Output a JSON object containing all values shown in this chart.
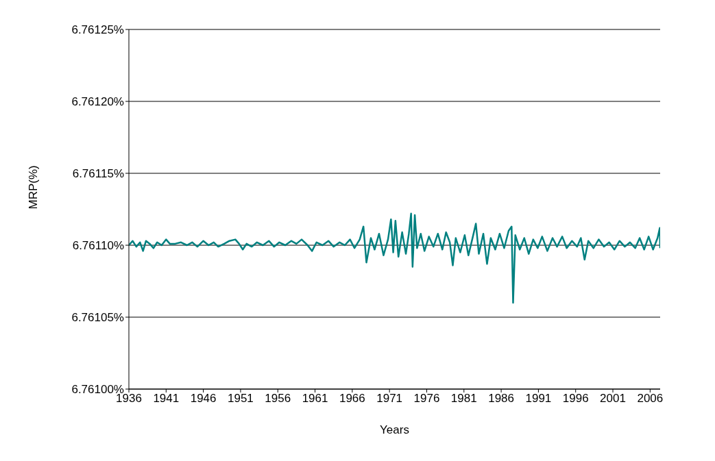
{
  "chart_data": {
    "type": "line",
    "xlabel": "Years",
    "ylabel": "MRP(%)",
    "grid": "y",
    "legend": false,
    "xlim": [
      1936,
      2007.35
    ],
    "xticks": [
      1936,
      1941,
      1946,
      1951,
      1956,
      1961,
      1966,
      1971,
      1976,
      1981,
      1986,
      1991,
      1996,
      2001,
      2006
    ],
    "ylim": [
      6.761,
      6.76125
    ],
    "yticks": [
      {
        "value": 6.761,
        "label": "6.76100%"
      },
      {
        "value": 6.76105,
        "label": "6.76105%"
      },
      {
        "value": 6.7611,
        "label": "6.76110%"
      },
      {
        "value": 6.76115,
        "label": "6.76115%"
      },
      {
        "value": 6.7612,
        "label": "6.76120%"
      },
      {
        "value": 6.76125,
        "label": "6.76125%"
      }
    ],
    "x": [
      1936.0,
      1936.5,
      1937.0,
      1937.5,
      1937.9,
      1938.3,
      1938.8,
      1939.3,
      1939.8,
      1940.4,
      1941.0,
      1941.5,
      1942.2,
      1943.0,
      1943.8,
      1944.5,
      1945.2,
      1946.0,
      1946.7,
      1947.4,
      1948.0,
      1948.8,
      1949.5,
      1950.3,
      1950.8,
      1951.3,
      1951.8,
      1952.5,
      1953.2,
      1954.0,
      1954.8,
      1955.5,
      1956.2,
      1957.0,
      1957.8,
      1958.5,
      1959.2,
      1960.0,
      1960.6,
      1961.2,
      1962.0,
      1962.8,
      1963.5,
      1964.3,
      1965.0,
      1965.7,
      1966.3,
      1967.0,
      1967.5,
      1967.9,
      1968.5,
      1969.0,
      1969.6,
      1970.2,
      1970.8,
      1971.2,
      1971.5,
      1971.8,
      1972.2,
      1972.7,
      1973.2,
      1973.6,
      1973.9,
      1974.1,
      1974.4,
      1974.7,
      1975.2,
      1975.7,
      1976.3,
      1976.9,
      1977.5,
      1978.1,
      1978.6,
      1979.1,
      1979.5,
      1979.9,
      1980.5,
      1981.1,
      1981.6,
      1982.2,
      1982.6,
      1983.0,
      1983.6,
      1984.1,
      1984.6,
      1985.2,
      1985.8,
      1986.4,
      1987.0,
      1987.4,
      1987.6,
      1987.9,
      1988.5,
      1989.1,
      1989.7,
      1990.3,
      1990.9,
      1991.5,
      1992.2,
      1992.9,
      1993.5,
      1994.2,
      1994.8,
      1995.5,
      1996.2,
      1996.7,
      1997.2,
      1997.7,
      1998.4,
      1999.1,
      1999.8,
      2000.5,
      2001.2,
      2001.9,
      2002.6,
      2003.3,
      2004.0,
      2004.6,
      2005.2,
      2005.8,
      2006.4,
      2007.0,
      2007.3,
      2007.35
    ],
    "series": [
      {
        "color": "#008080",
        "values": [
          6.7611,
          6.761103,
          6.761099,
          6.761102,
          6.761096,
          6.761103,
          6.761101,
          6.761098,
          6.761102,
          6.7611,
          6.761104,
          6.761101,
          6.761101,
          6.761102,
          6.7611,
          6.761102,
          6.761099,
          6.761103,
          6.7611,
          6.761102,
          6.761099,
          6.761101,
          6.761103,
          6.761104,
          6.761101,
          6.761097,
          6.761101,
          6.761099,
          6.761102,
          6.7611,
          6.761103,
          6.761099,
          6.761102,
          6.7611,
          6.761103,
          6.761101,
          6.761104,
          6.7611,
          6.761096,
          6.761102,
          6.7611,
          6.761103,
          6.761099,
          6.761102,
          6.7611,
          6.761104,
          6.761098,
          6.761104,
          6.761113,
          6.761088,
          6.761105,
          6.761097,
          6.761108,
          6.761093,
          6.761104,
          6.761118,
          6.761095,
          6.761117,
          6.761092,
          6.761109,
          6.761094,
          6.761108,
          6.761122,
          6.761085,
          6.761121,
          6.761098,
          6.761108,
          6.761096,
          6.761106,
          6.761099,
          6.761108,
          6.761097,
          6.761109,
          6.761102,
          6.761086,
          6.761105,
          6.761095,
          6.761107,
          6.761093,
          6.761106,
          6.761115,
          6.761094,
          6.761108,
          6.761087,
          6.761105,
          6.761097,
          6.761108,
          6.761098,
          6.76111,
          6.761113,
          6.76106,
          6.761107,
          6.761097,
          6.761105,
          6.761094,
          6.761104,
          6.761098,
          6.761106,
          6.761096,
          6.761105,
          6.761099,
          6.761106,
          6.761098,
          6.761103,
          6.761099,
          6.761105,
          6.76109,
          6.761103,
          6.761098,
          6.761104,
          6.761099,
          6.761102,
          6.761097,
          6.761103,
          6.761099,
          6.761102,
          6.761098,
          6.761105,
          6.761097,
          6.761106,
          6.761097,
          6.761105,
          6.761112,
          6.761098
        ]
      }
    ]
  }
}
